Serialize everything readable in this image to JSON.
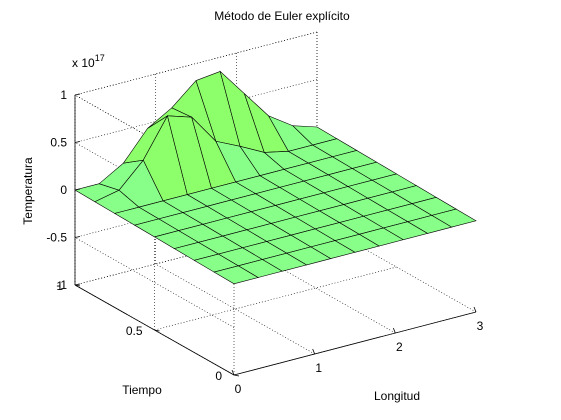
{
  "chart_data": {
    "type": "surface",
    "title": "Método de Euler explícito",
    "xlabel": "Longitud",
    "ylabel": "Tiempo",
    "zlabel": "Temperatura",
    "z_multiplier": "x 10",
    "z_exponent": "17",
    "xlim": [
      0,
      3
    ],
    "ylim": [
      0,
      1
    ],
    "zlim": [
      -1,
      1
    ],
    "x_ticks": [
      0,
      1,
      2,
      3
    ],
    "x_tick_labels": [
      "0",
      "1",
      "2",
      "3"
    ],
    "y_ticks": [
      0,
      0.5,
      1
    ],
    "y_tick_labels": [
      "0",
      "0.5",
      "1"
    ],
    "z_ticks": [
      -1,
      -0.5,
      0,
      0.5,
      1
    ],
    "z_tick_labels": [
      "-1",
      "-0.5",
      "0",
      "0.5",
      "1"
    ],
    "grid": true,
    "face_color": "#88ff88",
    "edge_color": "#000000",
    "surface_x": [
      0,
      0.3,
      0.6,
      0.9,
      1.2,
      1.5,
      1.8,
      2.1,
      2.4,
      2.7,
      3.0
    ],
    "surface_y": [
      0,
      0.125,
      0.25,
      0.375,
      0.5,
      0.625,
      0.75,
      0.875,
      1.0
    ],
    "surface_z_spikes": [
      {
        "x": 0.3,
        "y": 0.875,
        "z": 0.05
      },
      {
        "x": 0.6,
        "y": 0.875,
        "z": 0.3
      },
      {
        "x": 0.9,
        "y": 0.875,
        "z": 0.7
      },
      {
        "x": 1.2,
        "y": 0.875,
        "z": 0.62
      },
      {
        "x": 1.5,
        "y": 0.875,
        "z": 0.3
      },
      {
        "x": 1.8,
        "y": 0.875,
        "z": 0.18
      },
      {
        "x": 2.1,
        "y": 0.875,
        "z": 0.05
      },
      {
        "x": 0.6,
        "y": 1.0,
        "z": 0.15
      },
      {
        "x": 0.9,
        "y": 1.0,
        "z": 0.45
      },
      {
        "x": 1.2,
        "y": 1.0,
        "z": 0.6
      },
      {
        "x": 1.5,
        "y": 1.0,
        "z": 0.82
      },
      {
        "x": 1.8,
        "y": 1.0,
        "z": 0.85
      },
      {
        "x": 2.1,
        "y": 1.0,
        "z": 0.55
      },
      {
        "x": 2.4,
        "y": 1.0,
        "z": 0.25
      },
      {
        "x": 2.7,
        "y": 1.0,
        "z": 0.08
      }
    ]
  }
}
